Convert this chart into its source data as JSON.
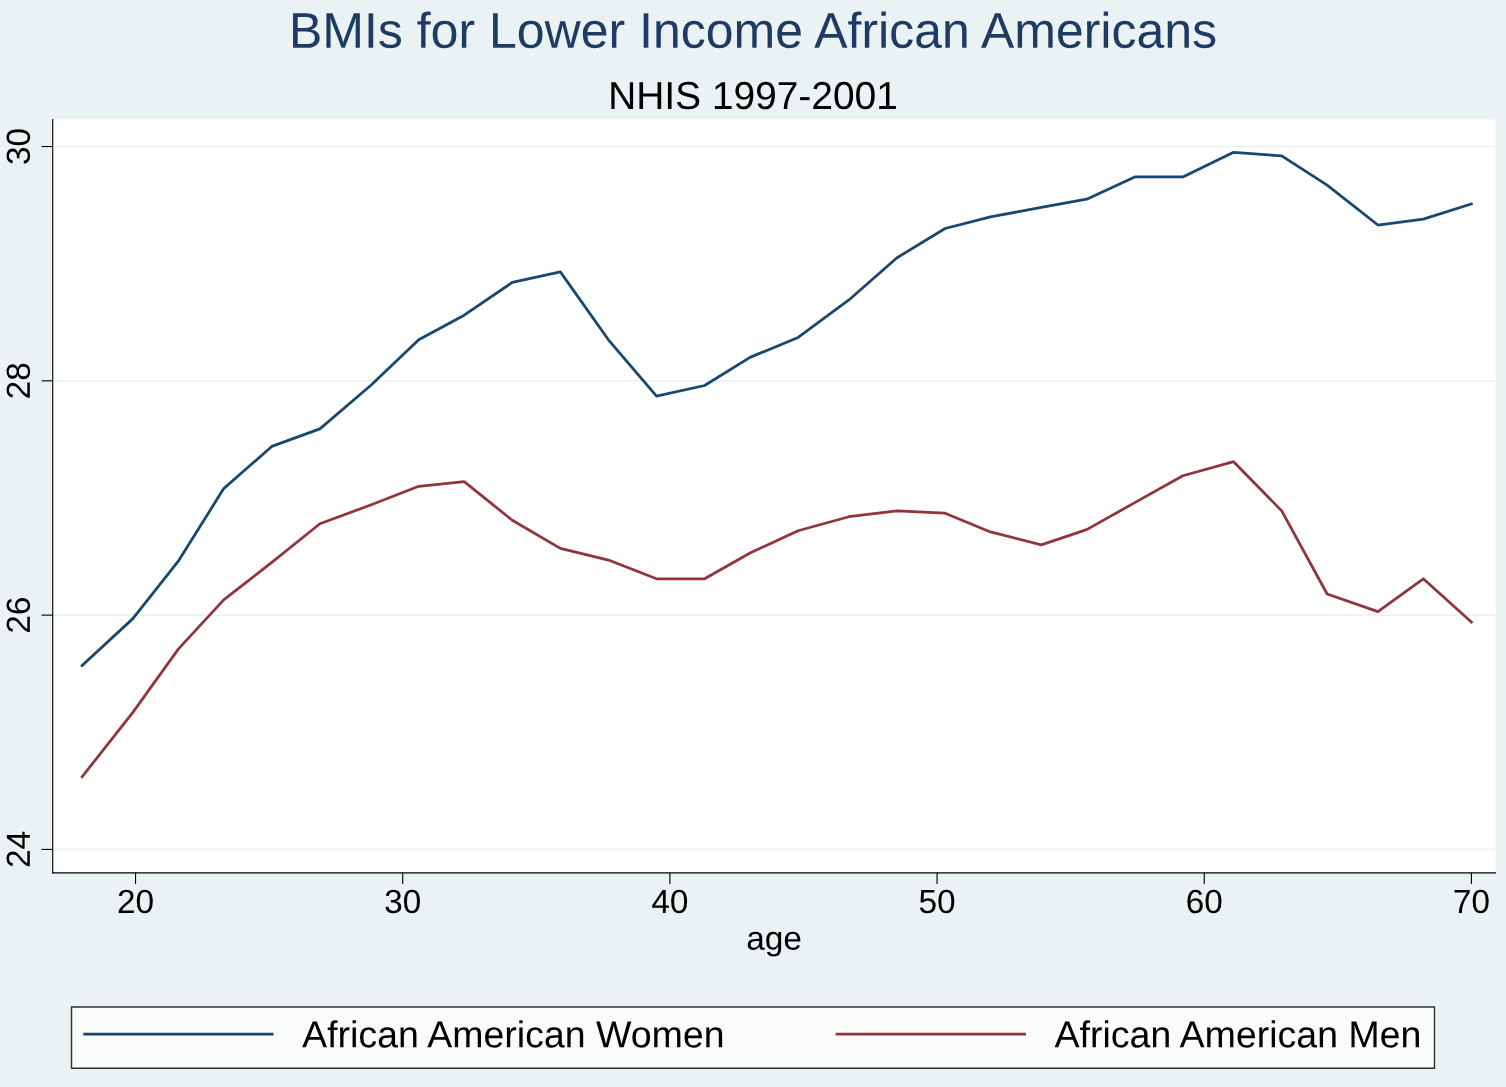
{
  "chart_data": {
    "type": "line",
    "title": "BMIs for Lower Income African Americans",
    "subtitle": "NHIS 1997-2001",
    "xlabel": "age",
    "x": [
      18,
      19.9,
      21.6,
      23.3,
      25.1,
      26.9,
      28.8,
      30.6,
      32.3,
      34.1,
      35.9,
      37.7,
      39.5,
      41.3,
      43.0,
      44.8,
      46.7,
      48.5,
      50.3,
      52.0,
      53.9,
      55.6,
      57.4,
      59.2,
      61.1,
      62.9,
      64.6,
      66.5,
      68.2,
      70
    ],
    "series": [
      {
        "name": "African American Women",
        "color": "#1a476f",
        "values": [
          25.57,
          25.97,
          26.46,
          27.08,
          27.44,
          27.59,
          27.96,
          28.35,
          28.56,
          28.84,
          28.93,
          28.35,
          27.87,
          27.96,
          28.2,
          28.37,
          28.69,
          29.05,
          29.3,
          29.4,
          29.48,
          29.55,
          29.74,
          29.74,
          29.95,
          29.92,
          29.67,
          29.33,
          29.38,
          29.51
        ]
      },
      {
        "name": "African American Men",
        "color": "#90353b",
        "values": [
          24.62,
          25.17,
          25.71,
          26.13,
          26.45,
          26.78,
          26.94,
          27.1,
          27.14,
          26.81,
          26.57,
          26.47,
          26.31,
          26.31,
          26.53,
          26.72,
          26.84,
          26.89,
          26.87,
          26.71,
          26.6,
          26.73,
          26.96,
          27.19,
          27.31,
          26.89,
          26.18,
          26.03,
          26.31,
          25.94
        ]
      }
    ],
    "xlim": [
      16.9,
      70.9
    ],
    "xticks": [
      20,
      30,
      40,
      50,
      60,
      70
    ],
    "ylim": [
      23.8,
      30.23
    ],
    "yticks": [
      24,
      26,
      28,
      30
    ],
    "grid": "y",
    "legend": "bottom",
    "line_style": "solid",
    "marker": "none"
  }
}
